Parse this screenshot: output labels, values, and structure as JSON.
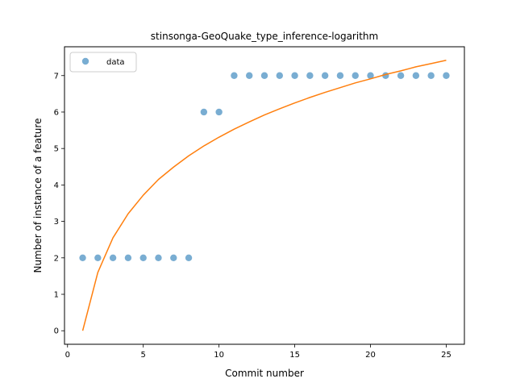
{
  "chart_data": {
    "type": "scatter",
    "title": "stinsonga-GeoQuake_type_inference-logarithm",
    "xlabel": "Commit number",
    "ylabel": "Number of instance of a feature",
    "xlim": [
      -0.2,
      26.2
    ],
    "ylim": [
      -0.371,
      7.791
    ],
    "xticks": [
      0,
      5,
      10,
      15,
      20,
      25
    ],
    "yticks": [
      0,
      1,
      2,
      3,
      4,
      5,
      6,
      7
    ],
    "grid": false,
    "legend_position": "top-left",
    "series": [
      {
        "name": "data",
        "kind": "scatter",
        "color": "#1f77b4",
        "x": [
          1,
          2,
          3,
          4,
          5,
          6,
          7,
          8,
          9,
          10,
          11,
          12,
          13,
          14,
          15,
          16,
          17,
          18,
          19,
          20,
          21,
          22,
          23,
          24,
          25
        ],
        "y": [
          2,
          2,
          2,
          2,
          2,
          2,
          2,
          2,
          6,
          6,
          7,
          7,
          7,
          7,
          7,
          7,
          7,
          7,
          7,
          7,
          7,
          7,
          7,
          7,
          7
        ]
      },
      {
        "kind": "line",
        "color": "#ff7f0e",
        "x": [
          1,
          2,
          3,
          4,
          5,
          6,
          7,
          8,
          9,
          10,
          11,
          12,
          13,
          14,
          15,
          16,
          17,
          18,
          19,
          20,
          21,
          22,
          23,
          24,
          25
        ],
        "y": [
          0,
          1.6,
          2.55,
          3.21,
          3.72,
          4.15,
          4.49,
          4.8,
          5.07,
          5.31,
          5.53,
          5.73,
          5.92,
          6.09,
          6.25,
          6.4,
          6.54,
          6.67,
          6.8,
          6.91,
          7.03,
          7.13,
          7.24,
          7.33,
          7.42
        ]
      }
    ]
  }
}
